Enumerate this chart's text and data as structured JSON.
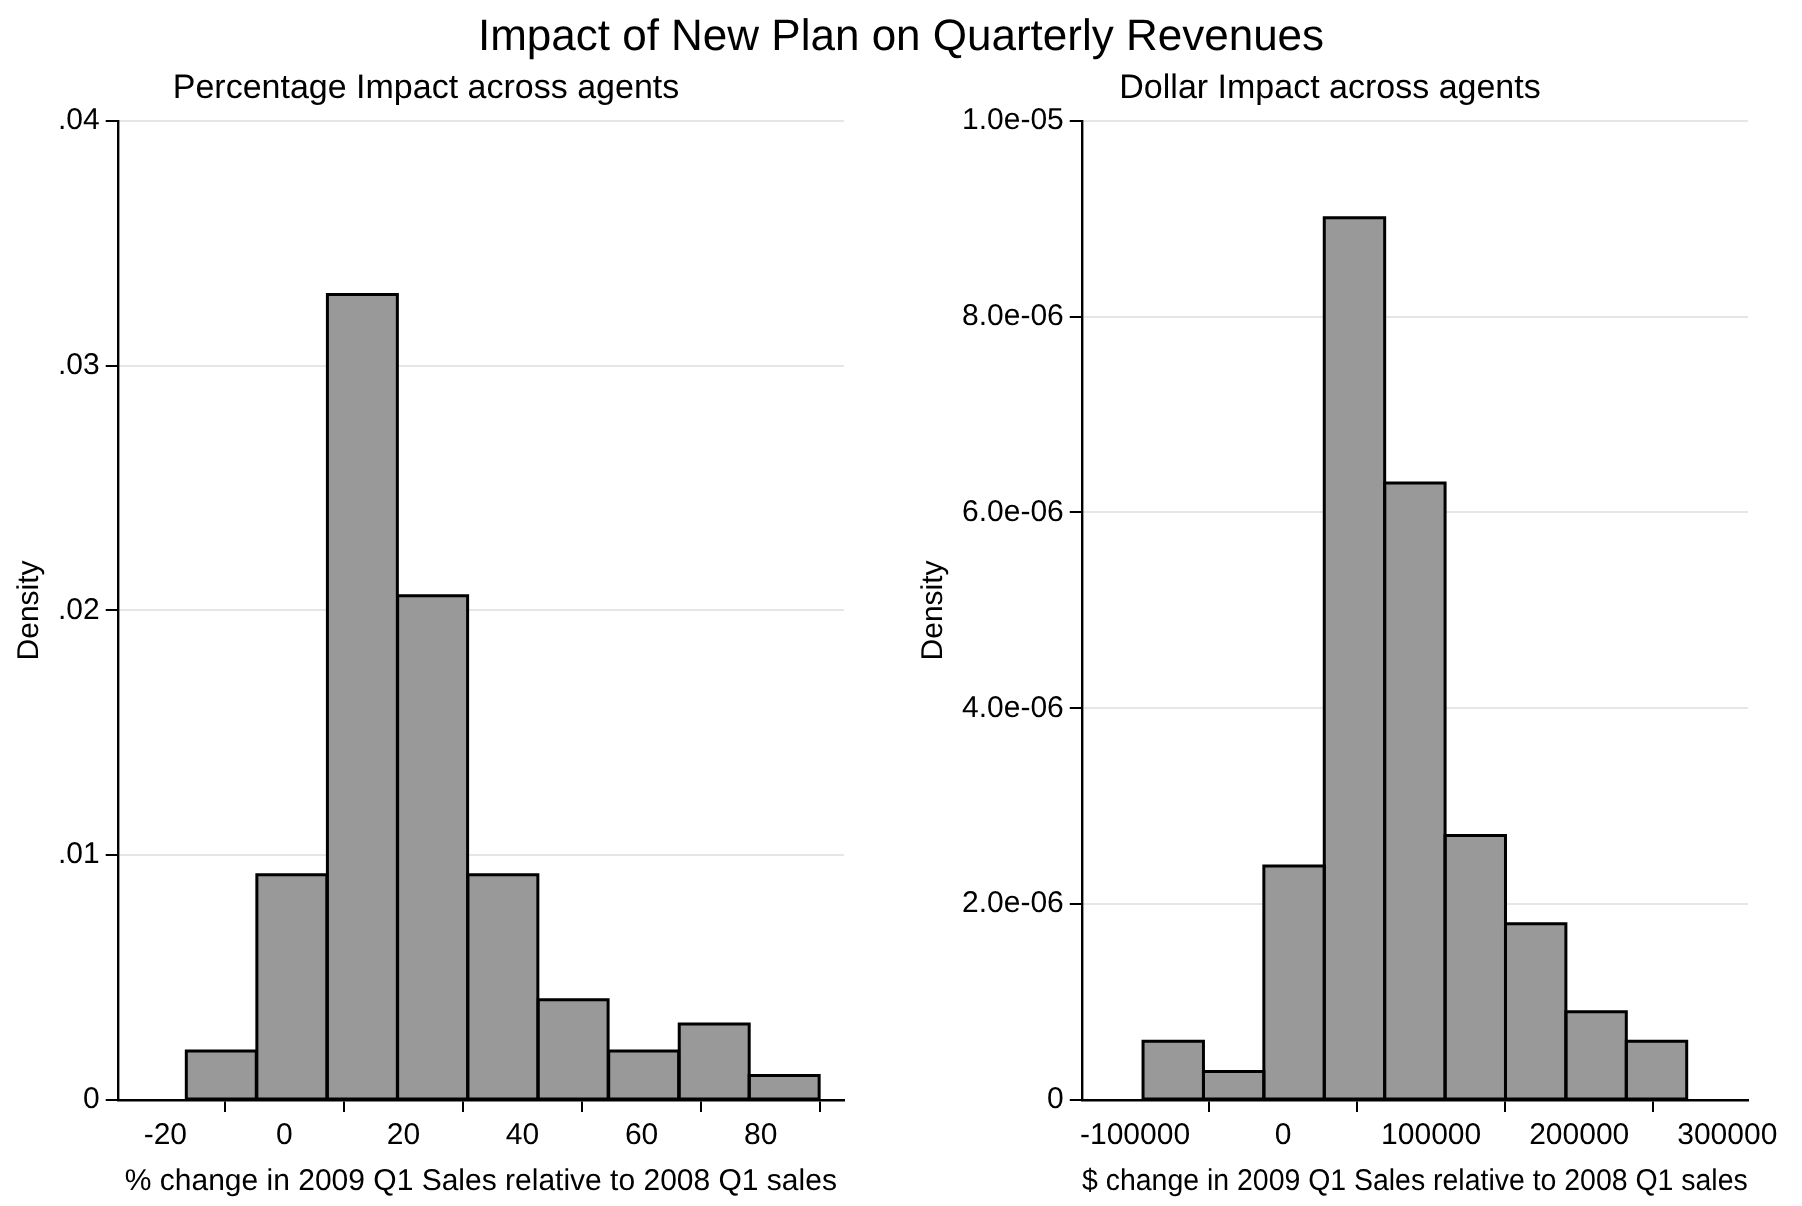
{
  "chart_data": [
    {
      "type": "histogram",
      "title": "Impact of New Plan on Quarterly Revenues",
      "subtitle": "Percentage Impact across agents",
      "xlabel": "% change in 2009 Q1 Sales relative to 2008 Q1 sales",
      "ylabel": "Density",
      "bins": [
        -16.5,
        -4.7,
        7.2,
        19.0,
        30.8,
        42.6,
        54.4,
        66.3,
        78.1,
        89.8
      ],
      "values": [
        0.002,
        0.0092,
        0.0329,
        0.0206,
        0.0092,
        0.0041,
        0.002,
        0.0031,
        0.001
      ],
      "color": "#999999",
      "xlim": [
        -28,
        94
      ],
      "xticks": [
        -20,
        0,
        20,
        40,
        60,
        80
      ],
      "ylim": [
        0,
        0.04
      ],
      "yticks": [
        0,
        {
          "value": 0.01,
          "label": ".01"
        },
        {
          "value": 0.02,
          "label": ".02"
        },
        {
          "value": 0.03,
          "label": ".03"
        },
        {
          "value": 0.04,
          "label": ".04"
        }
      ],
      "grid": "y"
    },
    {
      "type": "histogram",
      "subtitle": "Dollar Impact across agents",
      "xlabel": "$ change in 2009 Q1 Sales relative to 2008 Q1 sales",
      "ylabel": "Density",
      "bins": [
        -94600,
        -53800,
        -13000,
        27800,
        68600,
        109400,
        150200,
        191000,
        231800,
        272600
      ],
      "values": [
        6e-07,
        2.9e-07,
        2.39e-06,
        9.01e-06,
        6.3e-06,
        2.7e-06,
        1.8e-06,
        9e-07,
        6e-07
      ],
      "color": "#999999",
      "xlim": [
        -136000,
        314000
      ],
      "xticks": [
        -100000,
        0,
        100000,
        200000,
        300000
      ],
      "ylim": [
        0,
        1e-05
      ],
      "yticks": [
        0,
        {
          "value": 2e-06,
          "label": "2.0e-06"
        },
        {
          "value": 4e-06,
          "label": "4.0e-06"
        },
        {
          "value": 6e-06,
          "label": "6.0e-06"
        },
        {
          "value": 8e-06,
          "label": "8.0e-06"
        },
        {
          "value": 1e-05,
          "label": "1.0e-05"
        }
      ],
      "grid": "y"
    }
  ]
}
